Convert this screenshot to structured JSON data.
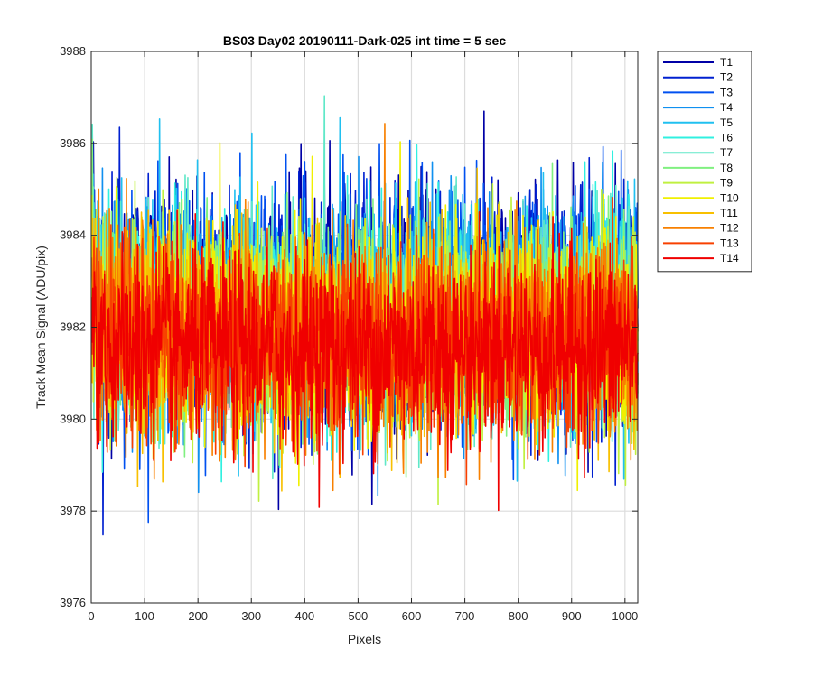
{
  "chart_data": {
    "type": "line",
    "title": "BS03 Day02 20190111-Dark-025 int time = 5 sec",
    "xlabel": "Pixels",
    "ylabel": "Track Mean Signal (ADU/pix)",
    "xlim": [
      0,
      1024
    ],
    "ylim": [
      3976,
      3988
    ],
    "xticks": [
      0,
      100,
      200,
      300,
      400,
      500,
      600,
      700,
      800,
      900,
      1000
    ],
    "yticks": [
      3976,
      3978,
      3980,
      3982,
      3984,
      3986,
      3988
    ],
    "grid": true,
    "legend_position": "outside-top-right",
    "n_points": 1024,
    "series": [
      {
        "name": "T1",
        "color": "#0000A6",
        "mean": 3982.5,
        "spread": 1.35
      },
      {
        "name": "T2",
        "color": "#0020D0",
        "mean": 3982.45,
        "spread": 1.3
      },
      {
        "name": "T3",
        "color": "#0050F0",
        "mean": 3982.4,
        "spread": 1.3
      },
      {
        "name": "T4",
        "color": "#1090F0",
        "mean": 3982.35,
        "spread": 1.25
      },
      {
        "name": "T5",
        "color": "#20C0F0",
        "mean": 3982.3,
        "spread": 1.25
      },
      {
        "name": "T6",
        "color": "#30F0E0",
        "mean": 3982.2,
        "spread": 1.2
      },
      {
        "name": "T7",
        "color": "#60E8C8",
        "mean": 3982.15,
        "spread": 1.2
      },
      {
        "name": "T8",
        "color": "#80F080",
        "mean": 3982.1,
        "spread": 1.2
      },
      {
        "name": "T9",
        "color": "#C0F040",
        "mean": 3982.0,
        "spread": 1.2
      },
      {
        "name": "T10",
        "color": "#F0F000",
        "mean": 3981.95,
        "spread": 1.2
      },
      {
        "name": "T11",
        "color": "#F8C000",
        "mean": 3981.85,
        "spread": 1.15
      },
      {
        "name": "T12",
        "color": "#F88000",
        "mean": 3981.75,
        "spread": 1.15
      },
      {
        "name": "T13",
        "color": "#F84000",
        "mean": 3981.65,
        "spread": 1.1
      },
      {
        "name": "T14",
        "color": "#F00000",
        "mean": 3981.55,
        "spread": 1.1
      }
    ]
  }
}
